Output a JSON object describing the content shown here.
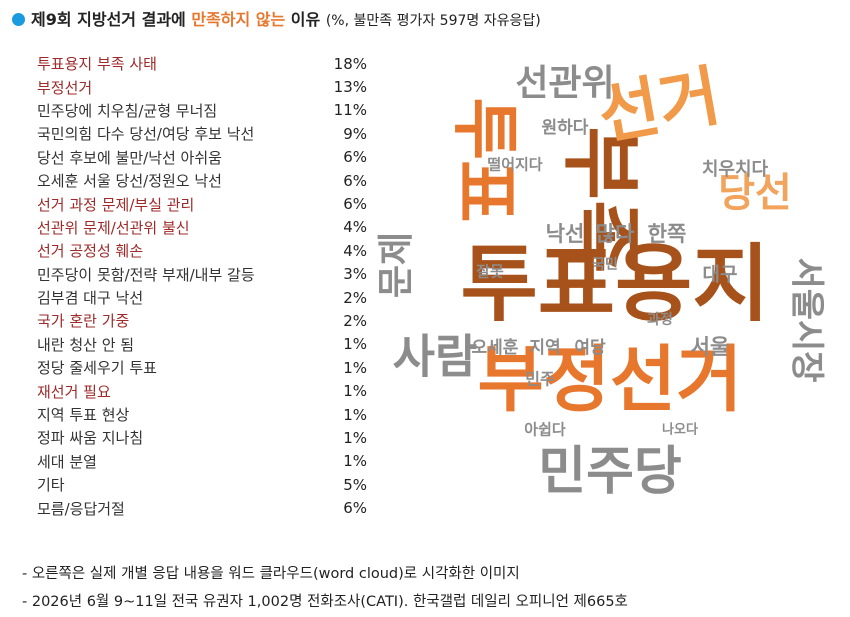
{
  "title": {
    "prefix": "제9회 지방선거 결과에 ",
    "highlight": "만족하지 않는",
    "suffix": " 이유",
    "subtitle": "(%, 불만족 평가자 597명 자유응답)",
    "highlight_color": "#e8772e",
    "dot_color": "#1a9be0"
  },
  "items": [
    {
      "label": "투표용지 부족 사태",
      "value": "18%",
      "color": "#9e2a2a"
    },
    {
      "label": "부정선거",
      "value": "13%",
      "color": "#9e2a2a"
    },
    {
      "label": "민주당에 치우침/균형 무너짐",
      "value": "11%",
      "color": "#333333"
    },
    {
      "label": "국민의힘 다수 당선/여당 후보 낙선",
      "value": "9%",
      "color": "#333333"
    },
    {
      "label": "당선 후보에 불만/낙선 아쉬움",
      "value": "6%",
      "color": "#333333"
    },
    {
      "label": "오세훈 서울 당선/정원오 낙선",
      "value": "6%",
      "color": "#333333"
    },
    {
      "label": "선거 과정 문제/부실 관리",
      "value": "6%",
      "color": "#9e2a2a"
    },
    {
      "label": "선관위 문제/선관위 불신",
      "value": "4%",
      "color": "#9e2a2a"
    },
    {
      "label": "선거 공정성 훼손",
      "value": "4%",
      "color": "#9e2a2a"
    },
    {
      "label": "민주당이 못함/전략 부재/내부 갈등",
      "value": "3%",
      "color": "#333333"
    },
    {
      "label": "김부겸 대구 낙선",
      "value": "2%",
      "color": "#333333"
    },
    {
      "label": "국가 혼란 가중",
      "value": "2%",
      "color": "#9e2a2a"
    },
    {
      "label": "내란 청산 안 됨",
      "value": "1%",
      "color": "#333333"
    },
    {
      "label": "정당 줄세우기 투표",
      "value": "1%",
      "color": "#333333"
    },
    {
      "label": "재선거 필요",
      "value": "1%",
      "color": "#9e2a2a"
    },
    {
      "label": "지역 투표 현상",
      "value": "1%",
      "color": "#333333"
    },
    {
      "label": "정파 싸움 지나침",
      "value": "1%",
      "color": "#333333"
    },
    {
      "label": "세대 분열",
      "value": "1%",
      "color": "#333333"
    },
    {
      "label": "기타",
      "value": "5%",
      "color": "#333333"
    },
    {
      "label": "모름/응답거절",
      "value": "6%",
      "color": "#333333"
    }
  ],
  "word_cloud": [
    {
      "word": "투표",
      "color": "#e8772e"
    },
    {
      "word": "투표용지",
      "color": "#a6521a"
    },
    {
      "word": "부족",
      "color": "#a6521a"
    },
    {
      "word": "선거",
      "color": "#f09a4a"
    },
    {
      "word": "부정선거",
      "color": "#e8772e"
    },
    {
      "word": "민주당",
      "color": "#8c8c8c"
    },
    {
      "word": "선관위",
      "color": "#8c8c8c"
    },
    {
      "word": "사람",
      "color": "#8c8c8c"
    },
    {
      "word": "문제",
      "color": "#8c8c8c"
    },
    {
      "word": "당선",
      "color": "#f2a35c"
    },
    {
      "word": "서울시장",
      "color": "#8c8c8c"
    },
    {
      "word": "낙선",
      "color": "#8c8c8c"
    },
    {
      "word": "많다",
      "color": "#8c8c8c"
    },
    {
      "word": "한쪽",
      "color": "#8c8c8c"
    },
    {
      "word": "치우치다",
      "color": "#8c8c8c"
    },
    {
      "word": "원하다",
      "color": "#8c8c8c"
    },
    {
      "word": "떨어지다",
      "color": "#8c8c8c"
    },
    {
      "word": "대구",
      "color": "#8c8c8c"
    },
    {
      "word": "서울",
      "color": "#8c8c8c"
    },
    {
      "word": "오세훈",
      "color": "#8c8c8c"
    },
    {
      "word": "지역",
      "color": "#8c8c8c"
    },
    {
      "word": "여당",
      "color": "#8c8c8c"
    },
    {
      "word": "민주",
      "color": "#8c8c8c"
    },
    {
      "word": "아쉽다",
      "color": "#8c8c8c"
    },
    {
      "word": "나오다",
      "color": "#8c8c8c"
    },
    {
      "word": "잘못",
      "color": "#8c8c8c"
    },
    {
      "word": "국민",
      "color": "#8c8c8c"
    },
    {
      "word": "과정",
      "color": "#8c8c8c"
    }
  ],
  "notes": [
    "- 오른쪽은 실제 개별 응답 내용을 워드 클라우드(word cloud)로 시각화한 이미지",
    "- 2026년 6월 9~11일 전국 유권자 1,002명 전화조사(CATI). 한국갤럽 데일리 오피니언 제665호"
  ]
}
